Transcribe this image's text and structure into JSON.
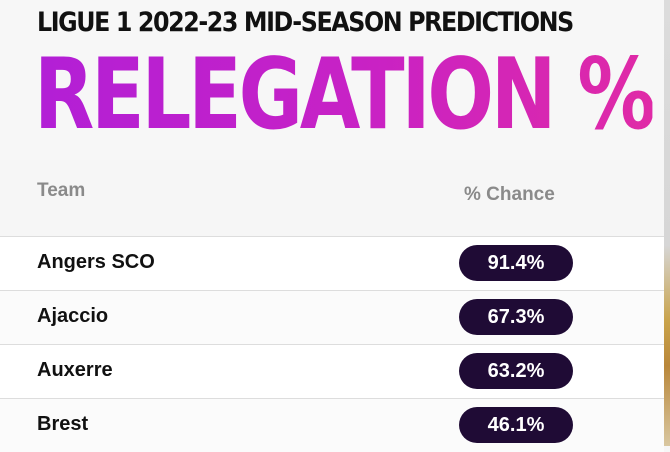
{
  "chart_data": {
    "type": "table",
    "subtitle": "LIGUE 1 2022-23 MID-SEASON PREDICTIONS",
    "title": "RELEGATION %",
    "columns": [
      "Team",
      "% Chance"
    ],
    "rows": [
      {
        "team": "Angers SCO",
        "chance": "91.4%",
        "value": 91.4
      },
      {
        "team": "Ajaccio",
        "chance": "67.3%",
        "value": 67.3
      },
      {
        "team": "Auxerre",
        "chance": "63.2%",
        "value": 63.2
      },
      {
        "team": "Brest",
        "chance": "46.1%",
        "value": 46.1
      }
    ]
  },
  "colors": {
    "title_gradient_start": "#b21fd6",
    "title_gradient_end": "#e02aa6",
    "pill_background": "#1f0b35",
    "pill_text": "#ffffff",
    "header_text": "#8a8a8a"
  }
}
